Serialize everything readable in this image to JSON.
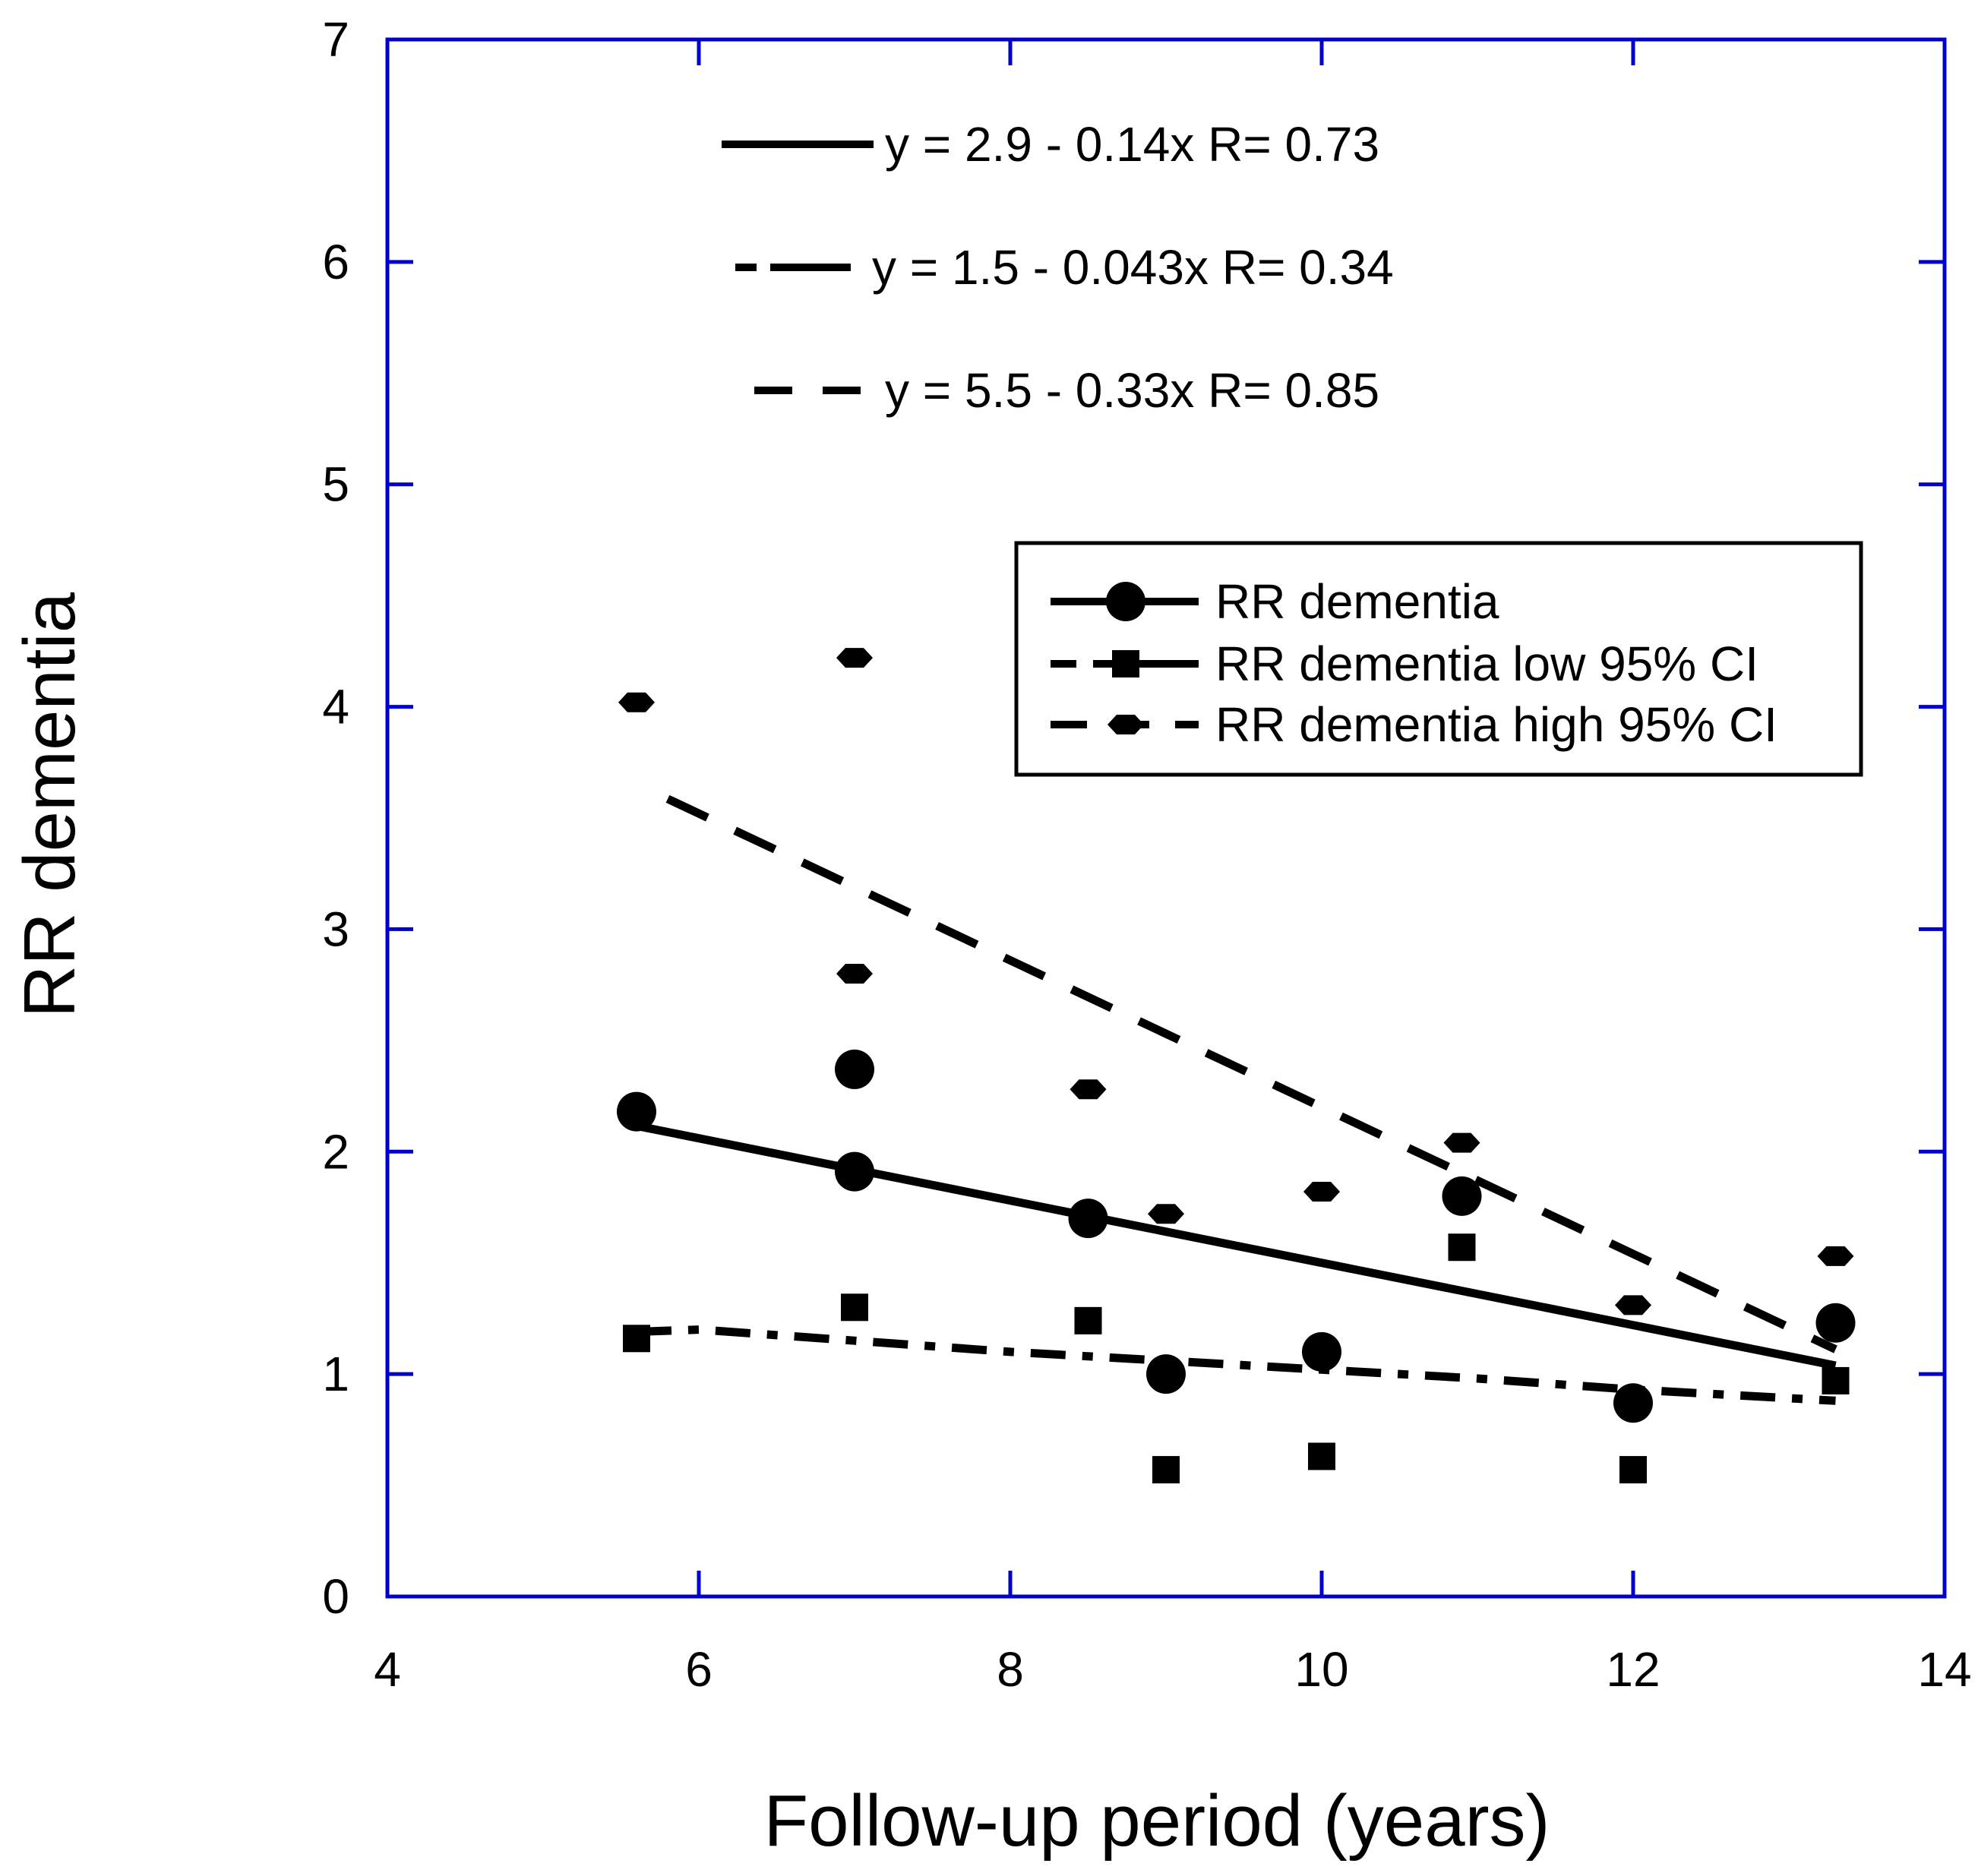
{
  "chart_data": {
    "type": "scatter",
    "title": "",
    "xlabel": "Follow-up period (years)",
    "ylabel": "RR dementia",
    "xlim": [
      4,
      14
    ],
    "ylim": [
      0,
      7
    ],
    "xticks": [
      "4",
      "6",
      "8",
      "10",
      "12",
      "14"
    ],
    "yticks": [
      "0",
      "1",
      "2",
      "3",
      "4",
      "5",
      "6",
      "7"
    ],
    "grid": false,
    "frame_color": "#0000cc",
    "series": [
      {
        "name": "RR dementia",
        "marker": "circle",
        "points": [
          [
            5.6,
            2.18
          ],
          [
            7.0,
            2.37
          ],
          [
            7.0,
            1.91
          ],
          [
            8.5,
            1.7
          ],
          [
            9.0,
            1.0
          ],
          [
            10.0,
            1.1
          ],
          [
            10.9,
            1.8
          ],
          [
            12.0,
            0.87
          ],
          [
            13.3,
            1.23
          ]
        ]
      },
      {
        "name": "RR dementia low 95% CI",
        "marker": "square",
        "points": [
          [
            5.6,
            1.16
          ],
          [
            7.0,
            1.3
          ],
          [
            8.5,
            1.24
          ],
          [
            9.0,
            0.57
          ],
          [
            10.0,
            0.63
          ],
          [
            10.9,
            1.57
          ],
          [
            12.0,
            0.57
          ],
          [
            13.3,
            0.97
          ]
        ]
      },
      {
        "name": "RR dementia high 95% CI",
        "marker": "hexagon",
        "points": [
          [
            5.6,
            4.02
          ],
          [
            7.0,
            4.22
          ],
          [
            7.0,
            2.8
          ],
          [
            8.5,
            2.28
          ],
          [
            9.0,
            1.72
          ],
          [
            10.0,
            1.82
          ],
          [
            10.9,
            2.04
          ],
          [
            12.0,
            1.31
          ],
          [
            13.3,
            1.53
          ]
        ]
      }
    ],
    "fit_lines": [
      {
        "name": "RR dementia fit",
        "style": "solid",
        "intercept": 2.9,
        "slope": -0.14,
        "x_range": [
          5.6,
          13.3
        ]
      },
      {
        "name": "RR dementia low 95% CI fit",
        "style": "dash-dot",
        "x_range": [
          5.6,
          13.3
        ],
        "curve": [
          [
            5.6,
            1.19
          ],
          [
            6.0,
            1.2
          ],
          [
            7.0,
            1.15
          ],
          [
            8.0,
            1.1
          ],
          [
            9.0,
            1.06
          ],
          [
            10.0,
            1.02
          ],
          [
            11.0,
            0.98
          ],
          [
            12.0,
            0.93
          ],
          [
            13.3,
            0.88
          ]
        ]
      },
      {
        "name": "RR dementia high 95% CI fit",
        "style": "dashed",
        "intercept": 5.5,
        "slope": -0.33,
        "x_range": [
          5.8,
          13.3
        ]
      }
    ],
    "equations": [
      {
        "text": "y = 2.9 - 0.14x   R= 0.73",
        "style": "solid"
      },
      {
        "text": "y = 1.5 - 0.043x   R= 0.34",
        "style": "dash-dot"
      },
      {
        "text": "y = 5.5 - 0.33x   R= 0.85",
        "style": "dashed"
      }
    ],
    "legend": {
      "placement": "upper-right",
      "entries": [
        {
          "label": "RR dementia",
          "marker": "circle",
          "style": "solid"
        },
        {
          "label": "RR dementia low 95% CI",
          "marker": "square",
          "style": "dash-dot"
        },
        {
          "label": "RR dementia high 95% CI",
          "marker": "hexagon",
          "style": "dashed"
        }
      ]
    }
  }
}
